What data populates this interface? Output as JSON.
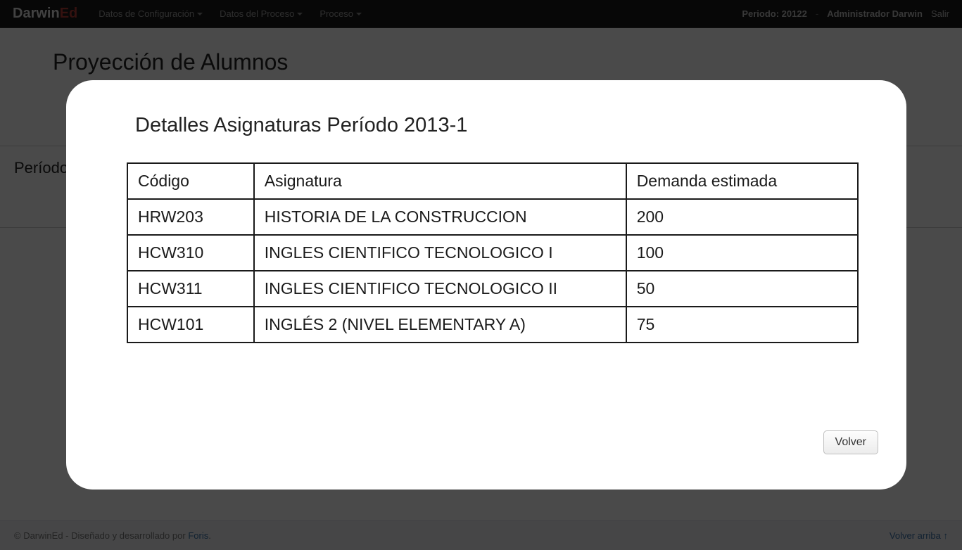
{
  "brand": {
    "part1": "Darwin",
    "part2": "Ed"
  },
  "nav": {
    "items": [
      {
        "label": "Datos de Configuración"
      },
      {
        "label": "Datos del Proceso"
      },
      {
        "label": "Proceso"
      }
    ],
    "right": {
      "periodo_label": "Periodo: 20122",
      "sep": "-",
      "user": "Administrador Darwin",
      "salir": "Salir"
    }
  },
  "page": {
    "title": "Proyección de Alumnos",
    "periodo_label": "Período"
  },
  "footer": {
    "copyright_prefix": "© DarwinEd - Diseñado y desarrollado por ",
    "foris": "Foris",
    "dot": ".",
    "back_top": "Volver arriba ↑"
  },
  "modal": {
    "title": "Detalles Asignaturas Período 2013-1",
    "columns": [
      "Código",
      "Asignatura",
      "Demanda estimada"
    ],
    "rows": [
      {
        "codigo": "HRW203",
        "asignatura": "HISTORIA DE LA CONSTRUCCION",
        "demanda": "200"
      },
      {
        "codigo": "HCW310",
        "asignatura": "INGLES CIENTIFICO TECNOLOGICO I",
        "demanda": "100"
      },
      {
        "codigo": "HCW311",
        "asignatura": "INGLES CIENTIFICO TECNOLOGICO II",
        "demanda": "50"
      },
      {
        "codigo": "HCW101",
        "asignatura": "INGLÉS 2 (NIVEL ELEMENTARY A)",
        "demanda": "75"
      }
    ],
    "volver": "Volver"
  }
}
